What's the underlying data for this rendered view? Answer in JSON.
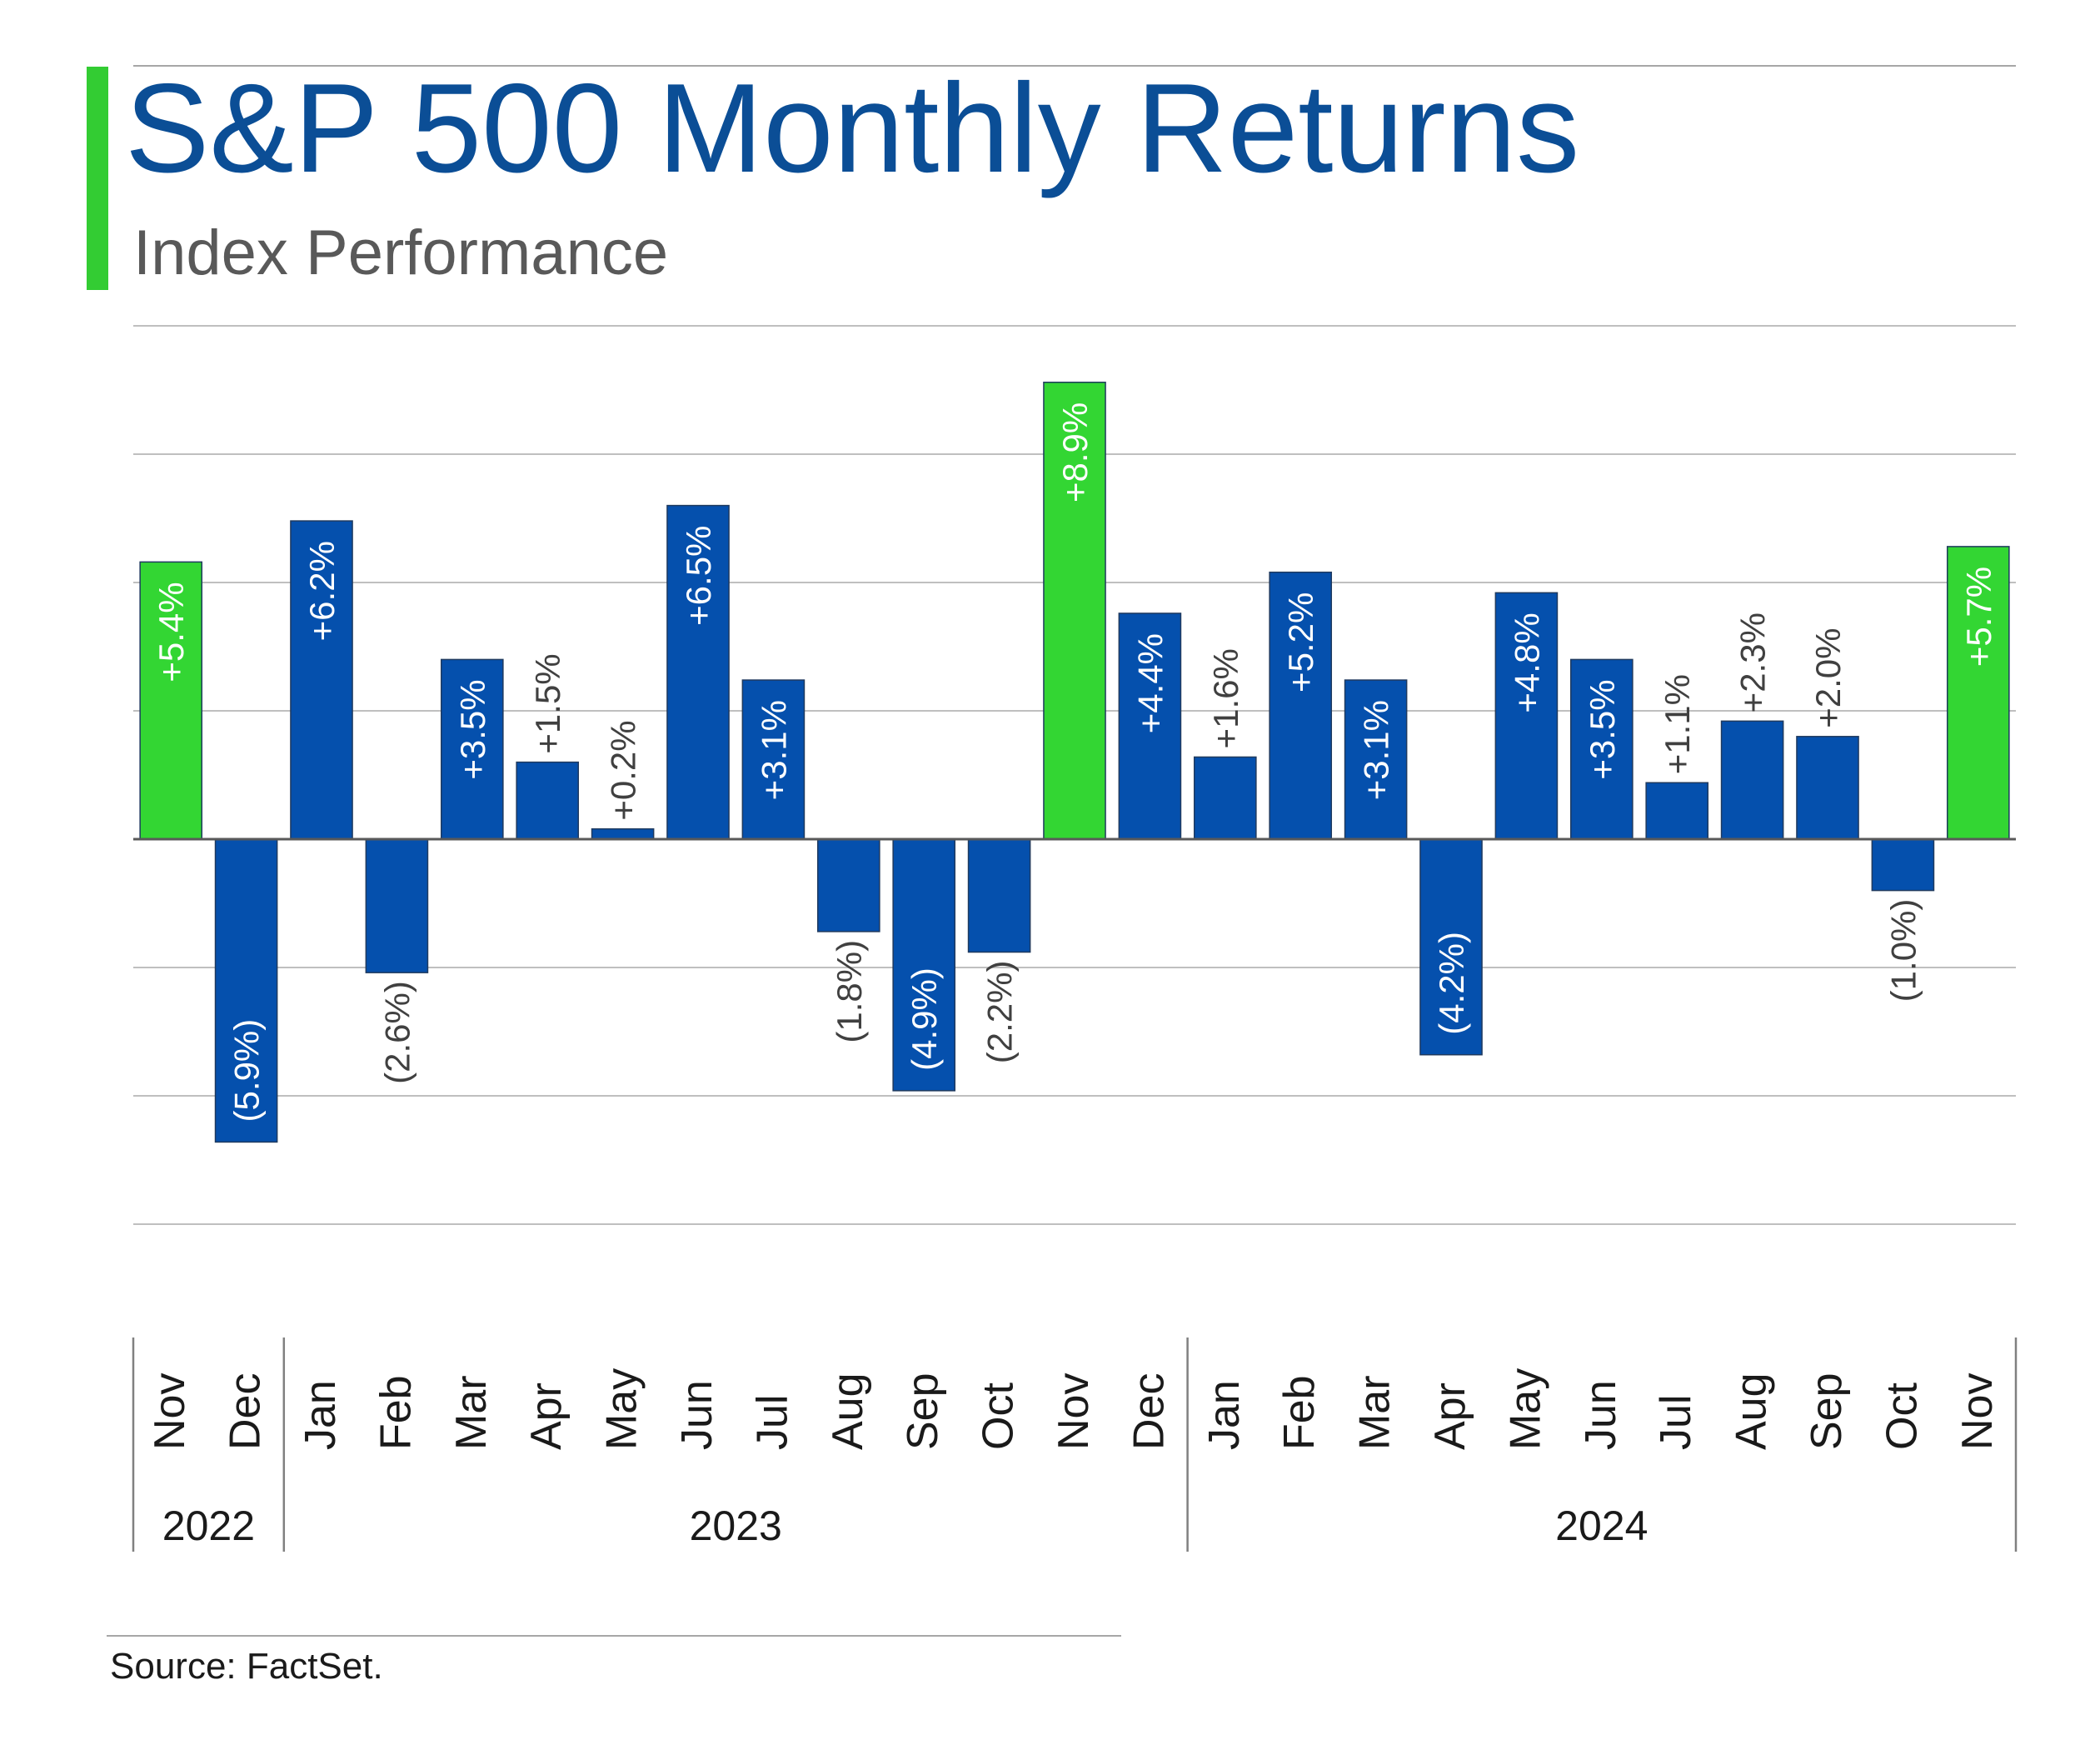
{
  "header": {
    "title": "S&P 500 Monthly Returns",
    "subtitle": "Index Performance"
  },
  "colors": {
    "title": "#0b4e96",
    "accent": "#33cc33",
    "bar_blue": "#0550ad",
    "bar_green": "#33d633",
    "grid": "#bfbfbf",
    "label_inside": "#ffffff",
    "label_outside": "#404040"
  },
  "chart_data": {
    "type": "bar",
    "title": "S&P 500 Monthly Returns",
    "subtitle": "Index Performance",
    "xlabel": "",
    "ylabel": "",
    "ylim": [
      -7.5,
      10.0
    ],
    "grid": true,
    "categories": [
      "Nov",
      "Dec",
      "Jan",
      "Feb",
      "Mar",
      "Apr",
      "May",
      "Jun",
      "Jul",
      "Aug",
      "Sep",
      "Oct",
      "Nov",
      "Dec",
      "Jan",
      "Feb",
      "Mar",
      "Apr",
      "May",
      "Jun",
      "Jul",
      "Aug",
      "Sep",
      "Oct",
      "Nov"
    ],
    "values": [
      5.4,
      -5.9,
      6.2,
      -2.6,
      3.5,
      1.5,
      0.2,
      6.5,
      3.1,
      -1.8,
      -4.9,
      -2.2,
      8.9,
      4.4,
      1.6,
      5.2,
      3.1,
      -4.2,
      4.8,
      3.5,
      1.1,
      2.3,
      2.0,
      -1.0,
      5.7
    ],
    "value_labels": [
      "+5.4%",
      "(5.9%)",
      "+6.2%",
      "(2.6%)",
      "+3.5%",
      "+1.5%",
      "+0.2%",
      "+6.5%",
      "+3.1%",
      "(1.8%)",
      "(4.9%)",
      "(2.2%)",
      "+8.9%",
      "+4.4%",
      "+1.6%",
      "+5.2%",
      "+3.1%",
      "(4.2%)",
      "+4.8%",
      "+3.5%",
      "+1.1%",
      "+2.3%",
      "+2.0%",
      "(1.0%)",
      "+5.7%"
    ],
    "highlight": [
      true,
      false,
      false,
      false,
      false,
      false,
      false,
      false,
      false,
      false,
      false,
      false,
      true,
      false,
      false,
      false,
      false,
      false,
      false,
      false,
      false,
      false,
      false,
      false,
      true
    ],
    "years": [
      {
        "label": "2022",
        "months": 2
      },
      {
        "label": "2023",
        "months": 12
      },
      {
        "label": "2024",
        "months": 11
      }
    ]
  },
  "footer": {
    "source": "Source: FactSet."
  }
}
